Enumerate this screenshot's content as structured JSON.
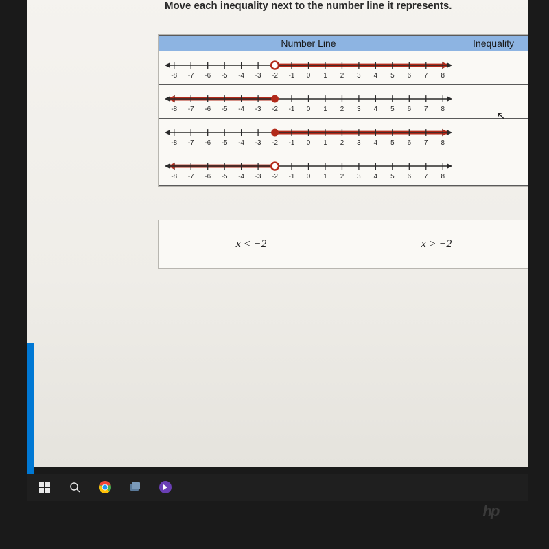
{
  "instruction": "Move each inequality next to the number line it represents.",
  "table": {
    "headers": {
      "numberLine": "Number Line",
      "inequality": "Inequality"
    },
    "axis": {
      "min": -8,
      "max": 8,
      "tick_step": 1,
      "labels": [
        "-8",
        "-7",
        "-6",
        "-5",
        "-4",
        "-3",
        "-2",
        "-1",
        "0",
        "1",
        "2",
        "3",
        "4",
        "5",
        "6",
        "7",
        "8"
      ],
      "line_color": "#2a2a2a",
      "tick_color": "#2a2a2a",
      "label_color": "#2a2a2a",
      "label_fontsize": 10
    },
    "ray_style": {
      "color": "#b22a1a",
      "width": 5,
      "arrow_size": 9
    },
    "rows": [
      {
        "point_value": -2,
        "point_open": true,
        "direction": "right"
      },
      {
        "point_value": -2,
        "point_open": false,
        "direction": "left"
      },
      {
        "point_value": -2,
        "point_open": false,
        "direction": "right"
      },
      {
        "point_value": -2,
        "point_open": true,
        "direction": "left"
      }
    ]
  },
  "choices": [
    {
      "label": "x < −2"
    },
    {
      "label": "x > −2"
    }
  ],
  "brand": "hp",
  "colors": {
    "screen_bg_top": "#f5f3ef",
    "screen_bg_bottom": "#e5e3dd",
    "card_bg": "#faf9f5",
    "card_border": "#b8b6b0",
    "header_bg": "#8db4e2",
    "taskbar_bg": "#1f1f1f",
    "accent_blue": "#0078d4"
  }
}
